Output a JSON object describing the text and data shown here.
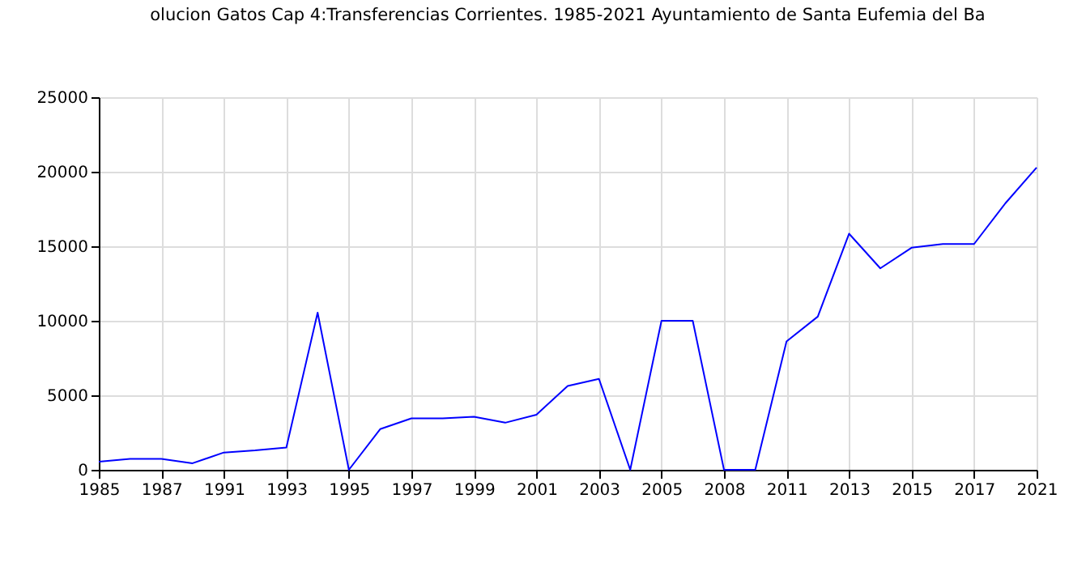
{
  "chart_data": {
    "type": "line",
    "title": "olucion Gatos Cap 4:Transferencias Corrientes. 1985-2021 Ayuntamiento de Santa Eufemia del Ba",
    "categories": [
      "1985",
      null,
      "1987",
      null,
      "1991",
      null,
      "1993",
      null,
      "1995",
      null,
      "1997",
      null,
      "1999",
      null,
      "2001",
      null,
      "2003",
      null,
      "2005",
      null,
      "2008",
      null,
      "2011",
      null,
      "2013",
      null,
      "2015",
      null,
      "2017",
      null,
      "2021"
    ],
    "series": [
      {
        "color": "#0000ff",
        "values": [
          550,
          730,
          730,
          440,
          1160,
          1300,
          1500,
          10540,
          0,
          2730,
          3450,
          3450,
          3560,
          3160,
          3700,
          5630,
          6100,
          0,
          10000,
          10000,
          0,
          0,
          8610,
          10280,
          15840,
          13520,
          14900,
          15150,
          15150,
          17880,
          20280
        ]
      }
    ],
    "ylim": [
      0,
      25000
    ],
    "yticks": [
      0,
      5000,
      10000,
      15000,
      20000,
      25000
    ],
    "grid": true
  }
}
